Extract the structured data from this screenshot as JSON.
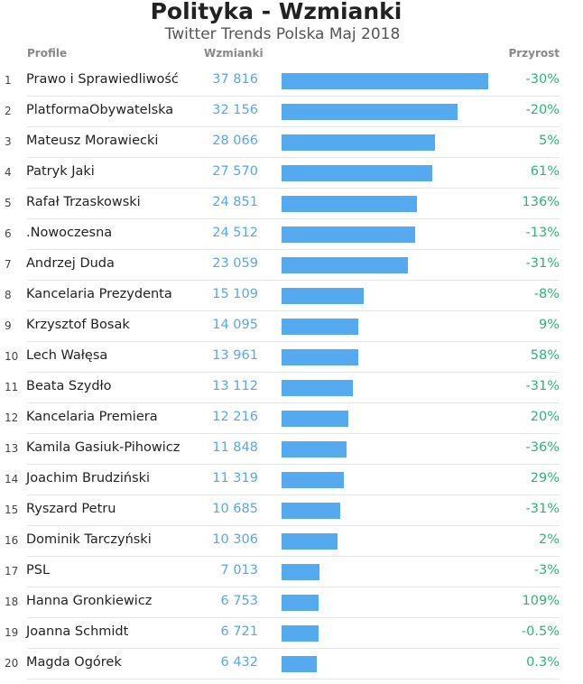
{
  "header": {
    "title": "Polityka - Wzmianki",
    "subtitle": "Twitter Trends Polska Maj 2018",
    "col_profile": "Profile",
    "col_mentions": "Wzmianki",
    "col_growth": "Przyrost"
  },
  "colors": {
    "bar": "#55a9ef",
    "mentions_text": "#5aa6e6",
    "growth_text": "#2db37a"
  },
  "chart_data": {
    "type": "bar",
    "orientation": "horizontal",
    "title": "Polityka - Wzmianki",
    "subtitle": "Twitter Trends Polska Maj 2018",
    "xlim": [
      0,
      37816
    ],
    "rows": [
      {
        "rank": "1",
        "name": "Prawo i Sprawiedliwość",
        "mentions": 37816,
        "mentions_label": "37 816",
        "growth": "-30%"
      },
      {
        "rank": "2",
        "name": "PlatformaObywatelska",
        "mentions": 32156,
        "mentions_label": "32 156",
        "growth": "-20%"
      },
      {
        "rank": "3",
        "name": "Mateusz Morawiecki",
        "mentions": 28066,
        "mentions_label": "28 066",
        "growth": "5%"
      },
      {
        "rank": "4",
        "name": "Patryk Jaki",
        "mentions": 27570,
        "mentions_label": "27 570",
        "growth": "61%"
      },
      {
        "rank": "5",
        "name": "Rafał Trzaskowski",
        "mentions": 24851,
        "mentions_label": "24 851",
        "growth": "136%"
      },
      {
        "rank": "6",
        "name": ".Nowoczesna",
        "mentions": 24512,
        "mentions_label": "24 512",
        "growth": "-13%"
      },
      {
        "rank": "7",
        "name": "Andrzej Duda",
        "mentions": 23059,
        "mentions_label": "23 059",
        "growth": "-31%"
      },
      {
        "rank": "8",
        "name": "Kancelaria Prezydenta",
        "mentions": 15109,
        "mentions_label": "15 109",
        "growth": "-8%"
      },
      {
        "rank": "9",
        "name": "Krzysztof Bosak",
        "mentions": 14095,
        "mentions_label": "14 095",
        "growth": "9%"
      },
      {
        "rank": "10",
        "name": "Lech Wałęsa",
        "mentions": 13961,
        "mentions_label": "13 961",
        "growth": "58%"
      },
      {
        "rank": "11",
        "name": "Beata Szydło",
        "mentions": 13112,
        "mentions_label": "13 112",
        "growth": "-31%"
      },
      {
        "rank": "12",
        "name": "Kancelaria Premiera",
        "mentions": 12216,
        "mentions_label": "12 216",
        "growth": "20%"
      },
      {
        "rank": "13",
        "name": "Kamila Gasiuk-Pihowicz",
        "mentions": 11848,
        "mentions_label": "11 848",
        "growth": "-36%"
      },
      {
        "rank": "14",
        "name": "Joachim Brudziński",
        "mentions": 11319,
        "mentions_label": "11 319",
        "growth": "29%"
      },
      {
        "rank": "15",
        "name": "Ryszard Petru",
        "mentions": 10685,
        "mentions_label": "10 685",
        "growth": "-31%"
      },
      {
        "rank": "16",
        "name": "Dominik Tarczyński",
        "mentions": 10306,
        "mentions_label": "10 306",
        "growth": "2%"
      },
      {
        "rank": "17",
        "name": "PSL",
        "mentions": 7013,
        "mentions_label": "7 013",
        "growth": "-3%"
      },
      {
        "rank": "18",
        "name": "Hanna Gronkiewicz",
        "mentions": 6753,
        "mentions_label": "6 753",
        "growth": "109%"
      },
      {
        "rank": "19",
        "name": "Joanna Schmidt",
        "mentions": 6721,
        "mentions_label": "6 721",
        "growth": "-0.5%"
      },
      {
        "rank": "20",
        "name": "Magda Ogórek",
        "mentions": 6432,
        "mentions_label": "6 432",
        "growth": "0.3%"
      }
    ]
  }
}
